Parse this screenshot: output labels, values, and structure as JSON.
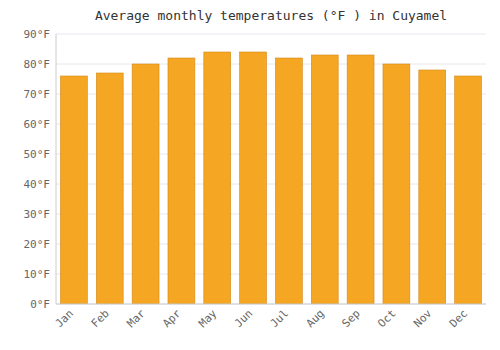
{
  "chart_data": {
    "type": "bar",
    "title": "Average monthly temperatures (°F ) in Cuyamel",
    "categories": [
      "Jan",
      "Feb",
      "Mar",
      "Apr",
      "May",
      "Jun",
      "Jul",
      "Aug",
      "Sep",
      "Oct",
      "Nov",
      "Dec"
    ],
    "values": [
      76,
      77,
      80,
      82,
      84,
      84,
      82,
      83,
      83,
      80,
      78,
      76
    ],
    "color": "#F5A623",
    "ylim": [
      0,
      90
    ],
    "yticks": [
      {
        "value": 0,
        "label": "0°F"
      },
      {
        "value": 10,
        "label": "10°F"
      },
      {
        "value": 20,
        "label": "20°F"
      },
      {
        "value": 30,
        "label": "30°F"
      },
      {
        "value": 40,
        "label": "40°F"
      },
      {
        "value": 50,
        "label": "50°F"
      },
      {
        "value": 60,
        "label": "60°F"
      },
      {
        "value": 70,
        "label": "70°F"
      },
      {
        "value": 80,
        "label": "80°F"
      },
      {
        "value": 90,
        "label": "90°F"
      }
    ],
    "grid": true
  }
}
